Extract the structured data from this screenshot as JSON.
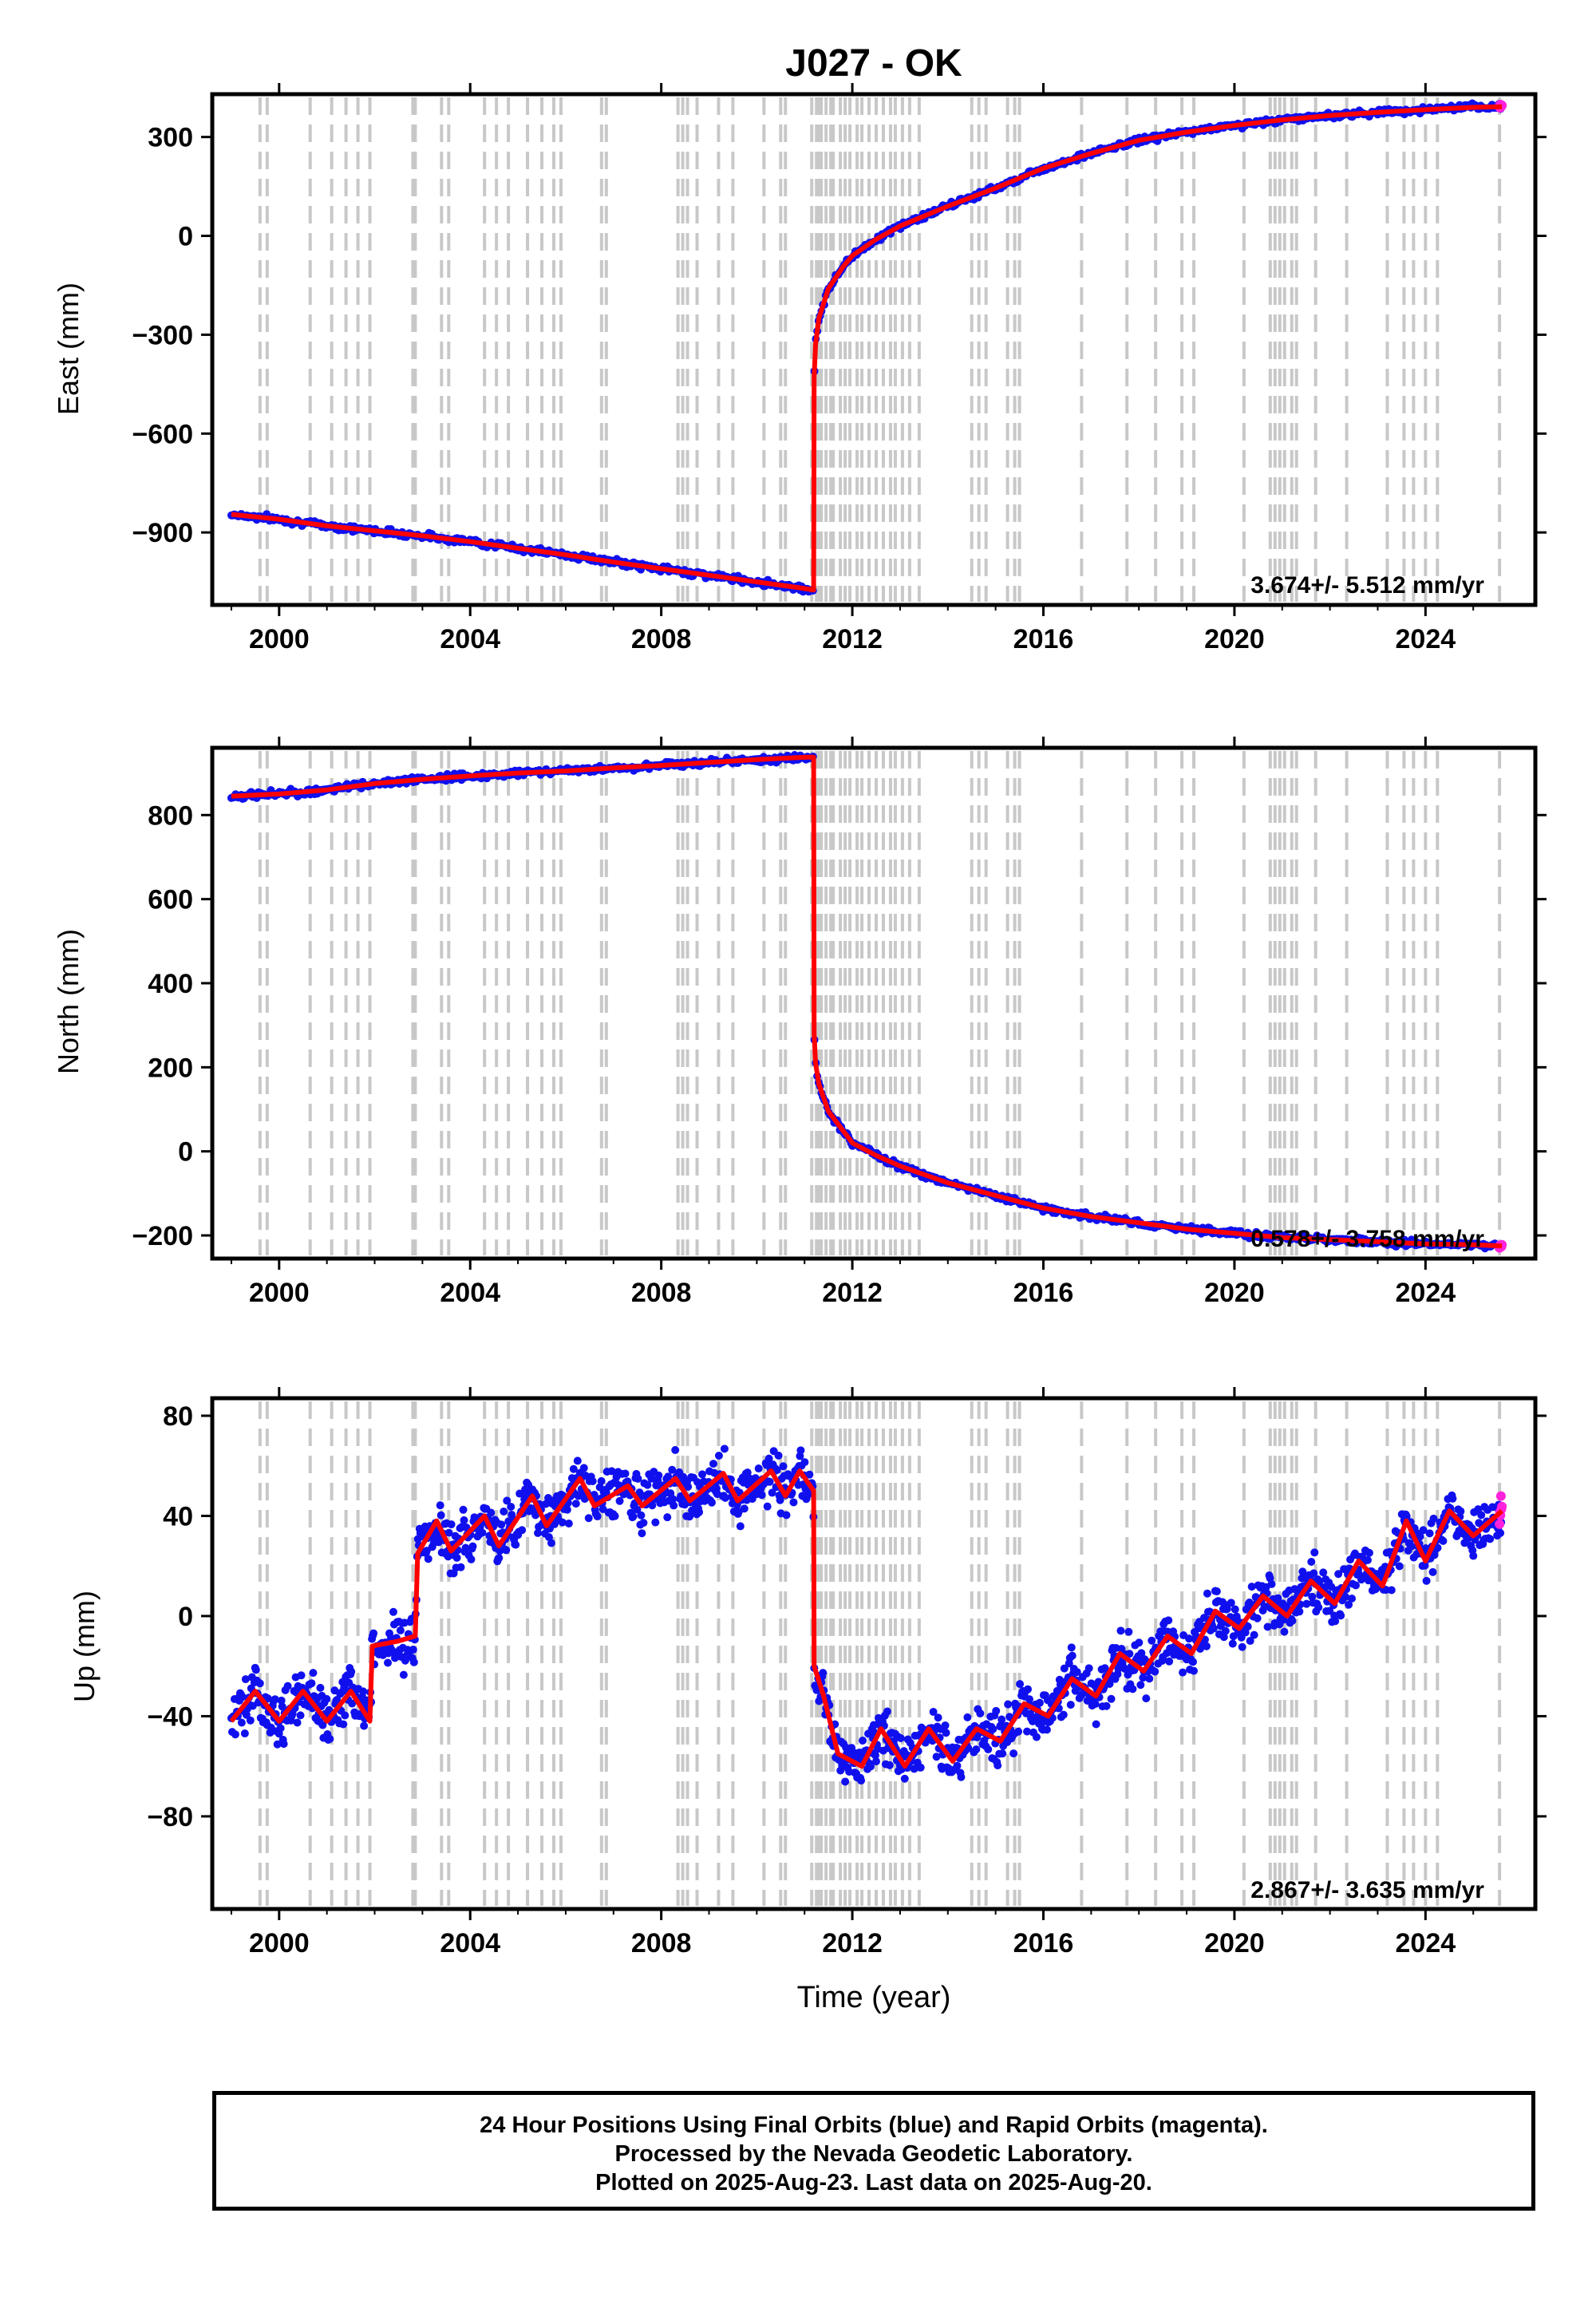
{
  "title": "J027 - OK",
  "xlabel": "Time (year)",
  "footer": {
    "line1": "24 Hour Positions Using Final Orbits (blue) and Rapid Orbits (magenta).",
    "line2": "Processed by the Nevada Geodetic Laboratory.",
    "line3": "Plotted on 2025-Aug-23. Last data on 2025-Aug-20."
  },
  "colors": {
    "final": "#1010ee",
    "rapid": "#ff22dd",
    "model": "#ff0000",
    "event": "#c8c8c8"
  },
  "chart_data": [
    {
      "type": "scatter",
      "ylabel": "East (mm)",
      "rate": "3.674+/- 5.512 mm/yr",
      "xlim": [
        1998.6,
        2026.3
      ],
      "ylim": [
        -1120,
        430
      ],
      "xticks": [
        2000,
        2004,
        2008,
        2012,
        2016,
        2020,
        2024
      ],
      "yticks": [
        -900,
        -600,
        -300,
        0,
        300
      ],
      "ytick_labels": [
        "−900",
        "−600",
        "−300",
        "0",
        "300"
      ],
      "series": [
        {
          "values": [
            [
              1999.0,
              -845
            ],
            [
              2000.0,
              -860
            ],
            [
              2001.0,
              -880
            ],
            [
              2002.0,
              -895
            ],
            [
              2003.0,
              -910
            ],
            [
              2004.0,
              -928
            ],
            [
              2005.0,
              -948
            ],
            [
              2006.0,
              -968
            ],
            [
              2007.0,
              -990
            ],
            [
              2008.0,
              -1010
            ],
            [
              2009.0,
              -1030
            ],
            [
              2010.0,
              -1050
            ],
            [
              2010.9,
              -1068
            ],
            [
              2011.19,
              -1075
            ],
            [
              2011.2,
              -430
            ],
            [
              2011.23,
              -330
            ],
            [
              2011.3,
              -250
            ],
            [
              2011.5,
              -160
            ],
            [
              2011.8,
              -95
            ],
            [
              2012.0,
              -60
            ],
            [
              2012.5,
              -10
            ],
            [
              2013.0,
              30
            ],
            [
              2014.0,
              90
            ],
            [
              2015.0,
              145
            ],
            [
              2016.0,
              205
            ],
            [
              2017.0,
              250
            ],
            [
              2018.0,
              290
            ],
            [
              2019.0,
              315
            ],
            [
              2020.0,
              335
            ],
            [
              2021.0,
              352
            ],
            [
              2022.0,
              365
            ],
            [
              2023.0,
              375
            ],
            [
              2024.0,
              383
            ],
            [
              2025.0,
              390
            ],
            [
              2025.6,
              392
            ]
          ]
        }
      ]
    },
    {
      "type": "scatter",
      "ylabel": "North (mm)",
      "rate": "0.578+/- 3.758 mm/yr",
      "xlim": [
        1998.6,
        2026.3
      ],
      "ylim": [
        -255,
        960
      ],
      "xticks": [
        2000,
        2004,
        2008,
        2012,
        2016,
        2020,
        2024
      ],
      "yticks": [
        -200,
        0,
        200,
        400,
        600,
        800
      ],
      "ytick_labels": [
        "−200",
        "0",
        "200",
        "400",
        "600",
        "800"
      ],
      "series": [
        {
          "values": [
            [
              1999.0,
              845
            ],
            [
              2000.0,
              850
            ],
            [
              2001.0,
              860
            ],
            [
              2002.0,
              875
            ],
            [
              2003.0,
              885
            ],
            [
              2004.0,
              893
            ],
            [
              2005.0,
              900
            ],
            [
              2006.0,
              905
            ],
            [
              2007.0,
              912
            ],
            [
              2008.0,
              918
            ],
            [
              2009.0,
              925
            ],
            [
              2010.0,
              932
            ],
            [
              2010.9,
              937
            ],
            [
              2011.19,
              938
            ],
            [
              2011.2,
              280
            ],
            [
              2011.23,
              210
            ],
            [
              2011.3,
              160
            ],
            [
              2011.5,
              95
            ],
            [
              2011.8,
              50
            ],
            [
              2012.0,
              20
            ],
            [
              2012.5,
              -10
            ],
            [
              2013.0,
              -35
            ],
            [
              2014.0,
              -75
            ],
            [
              2015.0,
              -105
            ],
            [
              2016.0,
              -135
            ],
            [
              2017.0,
              -155
            ],
            [
              2018.0,
              -170
            ],
            [
              2019.0,
              -185
            ],
            [
              2020.0,
              -195
            ],
            [
              2021.0,
              -205
            ],
            [
              2022.0,
              -210
            ],
            [
              2023.0,
              -215
            ],
            [
              2024.0,
              -220
            ],
            [
              2025.0,
              -222
            ],
            [
              2025.6,
              -225
            ]
          ]
        }
      ]
    },
    {
      "type": "scatter",
      "ylabel": "Up (mm)",
      "rate": "2.867+/- 3.635 mm/yr",
      "xlim": [
        1998.6,
        2026.3
      ],
      "ylim": [
        -117,
        87
      ],
      "xticks": [
        2000,
        2004,
        2008,
        2012,
        2016,
        2020,
        2024
      ],
      "yticks": [
        -80,
        -40,
        0,
        40,
        80
      ],
      "ytick_labels": [
        "−80",
        "−40",
        "0",
        "40",
        "80"
      ],
      "series": [
        {
          "values": [
            [
              1999.0,
              -42
            ],
            [
              1999.5,
              -30
            ],
            [
              2000.0,
              -42
            ],
            [
              2000.5,
              -30
            ],
            [
              2001.0,
              -42
            ],
            [
              2001.5,
              -30
            ],
            [
              2001.9,
              -42
            ],
            [
              2001.95,
              -12
            ],
            [
              2002.5,
              -10
            ],
            [
              2002.85,
              -8
            ],
            [
              2002.9,
              25
            ],
            [
              2003.3,
              38
            ],
            [
              2003.6,
              26
            ],
            [
              2004.3,
              40
            ],
            [
              2004.6,
              28
            ],
            [
              2005.3,
              48
            ],
            [
              2005.6,
              36
            ],
            [
              2006.3,
              55
            ],
            [
              2006.6,
              44
            ],
            [
              2007.3,
              52
            ],
            [
              2007.6,
              44
            ],
            [
              2008.3,
              55
            ],
            [
              2008.6,
              46
            ],
            [
              2009.3,
              57
            ],
            [
              2009.6,
              46
            ],
            [
              2010.3,
              58
            ],
            [
              2010.6,
              48
            ],
            [
              2010.9,
              58
            ],
            [
              2011.19,
              50
            ],
            [
              2011.2,
              -20
            ],
            [
              2011.4,
              -32
            ],
            [
              2011.7,
              -55
            ],
            [
              2012.2,
              -60
            ],
            [
              2012.6,
              -45
            ],
            [
              2013.1,
              -60
            ],
            [
              2013.6,
              -45
            ],
            [
              2014.1,
              -58
            ],
            [
              2014.6,
              -45
            ],
            [
              2015.1,
              -50
            ],
            [
              2015.6,
              -35
            ],
            [
              2016.1,
              -40
            ],
            [
              2016.6,
              -25
            ],
            [
              2017.1,
              -32
            ],
            [
              2017.6,
              -15
            ],
            [
              2018.1,
              -22
            ],
            [
              2018.6,
              -8
            ],
            [
              2019.1,
              -15
            ],
            [
              2019.6,
              2
            ],
            [
              2020.1,
              -5
            ],
            [
              2020.6,
              8
            ],
            [
              2021.1,
              0
            ],
            [
              2021.6,
              14
            ],
            [
              2022.1,
              5
            ],
            [
              2022.6,
              22
            ],
            [
              2023.1,
              12
            ],
            [
              2023.6,
              38
            ],
            [
              2024.0,
              22
            ],
            [
              2024.5,
              42
            ],
            [
              2025.0,
              32
            ],
            [
              2025.6,
              42
            ]
          ]
        }
      ]
    }
  ],
  "events": [
    1999.6,
    1999.75,
    2000.65,
    2001.1,
    2001.4,
    2001.65,
    2001.9,
    2002.8,
    2002.85,
    2003.4,
    2003.55,
    2004.3,
    2004.55,
    2004.8,
    2005.2,
    2005.5,
    2005.75,
    2005.9,
    2006.75,
    2006.85,
    2008.35,
    2008.45,
    2008.55,
    2008.75,
    2009.2,
    2009.5,
    2010.15,
    2010.5,
    2010.6,
    2011.15,
    2011.25,
    2011.3,
    2011.35,
    2011.45,
    2011.55,
    2011.6,
    2011.75,
    2011.85,
    2011.95,
    2012.1,
    2012.2,
    2012.35,
    2012.5,
    2012.65,
    2012.8,
    2012.9,
    2013.05,
    2013.2,
    2013.4,
    2014.5,
    2014.65,
    2014.8,
    2015.25,
    2015.4,
    2015.5,
    2016.8,
    2017.75,
    2018.35,
    2018.9,
    2019.15,
    2020.2,
    2020.75,
    2020.85,
    2020.95,
    2021.05,
    2021.2,
    2021.3,
    2021.7,
    2022.35,
    2023.2,
    2023.55,
    2023.75,
    2024.0,
    2024.25,
    2025.55
  ]
}
